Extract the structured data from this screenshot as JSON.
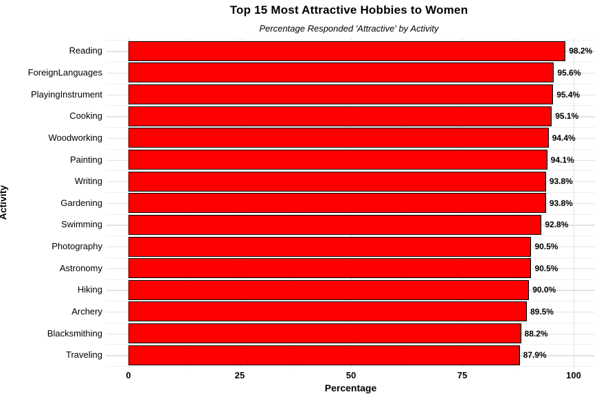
{
  "title": "Top 15 Most Attractive Hobbies to Women",
  "subtitle": "Percentage Responded 'Attractive' by Activity",
  "chart_data": {
    "type": "bar",
    "orientation": "horizontal",
    "title": "Top 15 Most Attractive Hobbies to Women",
    "subtitle": "Percentage Responded 'Attractive' by Activity",
    "xlabel": "Percentage",
    "ylabel": "Activity",
    "categories": [
      "Reading",
      "ForeignLanguages",
      "PlayingInstrument",
      "Cooking",
      "Woodworking",
      "Painting",
      "Writing",
      "Gardening",
      "Swimming",
      "Photography",
      "Astronomy",
      "Hiking",
      "Archery",
      "Blacksmithing",
      "Traveling"
    ],
    "values": [
      98.2,
      95.6,
      95.4,
      95.1,
      94.4,
      94.1,
      93.8,
      93.8,
      92.8,
      90.5,
      90.5,
      90.0,
      89.5,
      88.2,
      87.9
    ],
    "value_labels": [
      "98.2%",
      "95.6%",
      "95.4%",
      "95.1%",
      "94.4%",
      "94.1%",
      "93.8%",
      "93.8%",
      "92.8%",
      "90.5%",
      "90.5%",
      "90.0%",
      "89.5%",
      "88.2%",
      "87.9%"
    ],
    "xlim": [
      0,
      100
    ],
    "x_major_ticks": [
      0,
      25,
      50,
      75,
      100
    ],
    "x_tick_labels": [
      "0",
      "25",
      "50",
      "75",
      "100"
    ],
    "x_minor_ticks": [
      12.5,
      37.5,
      62.5,
      87.5
    ],
    "grid": true,
    "legend_position": "none",
    "colors": {
      "bar_fill": "#FF0000",
      "bar_border": "#000000",
      "grid_major": "#E2E2E2",
      "grid_minor": "#EFEFEF",
      "text": "#000000",
      "background": "#FFFFFF"
    }
  }
}
